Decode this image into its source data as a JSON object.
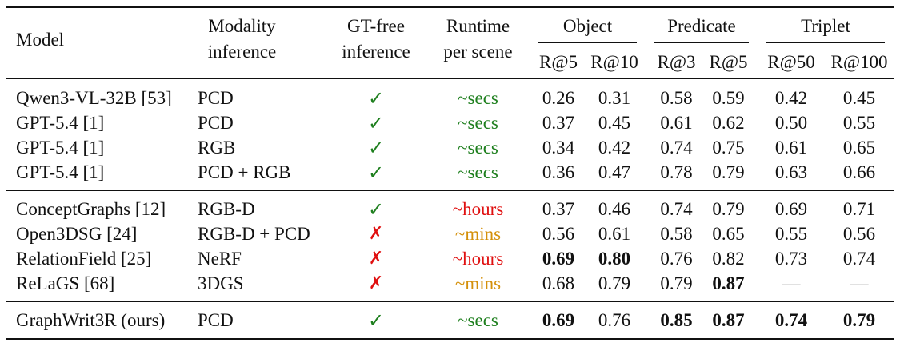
{
  "header": {
    "model": "Model",
    "modality_l1": "Modality",
    "modality_l2": "inference",
    "gtfree_l1": "GT-free",
    "gtfree_l2": "inference",
    "runtime_l1": "Runtime",
    "runtime_l2": "per scene",
    "group_object": "Object",
    "group_predicate": "Predicate",
    "group_triplet": "Triplet",
    "sub": [
      "R@5",
      "R@10",
      "R@3",
      "R@5",
      "R@50",
      "R@100"
    ]
  },
  "colors": {
    "green": "#1e7f1e",
    "red": "#e01010",
    "orange": "#d4900a"
  },
  "rows": [
    {
      "model": "Qwen3-VL-32B [53]",
      "modality": "PCD",
      "gtfree": "✓",
      "runtime": "~secs",
      "vals": [
        "0.26",
        "0.31",
        "0.58",
        "0.59",
        "0.42",
        "0.45"
      ]
    },
    {
      "model": "GPT-5.4 [1]",
      "modality": "PCD",
      "gtfree": "✓",
      "runtime": "~secs",
      "vals": [
        "0.37",
        "0.45",
        "0.61",
        "0.62",
        "0.50",
        "0.55"
      ]
    },
    {
      "model": "GPT-5.4 [1]",
      "modality": "RGB",
      "gtfree": "✓",
      "runtime": "~secs",
      "vals": [
        "0.34",
        "0.42",
        "0.74",
        "0.75",
        "0.61",
        "0.65"
      ]
    },
    {
      "model": "GPT-5.4 [1]",
      "modality": "PCD + RGB",
      "gtfree": "✓",
      "runtime": "~secs",
      "vals": [
        "0.36",
        "0.47",
        "0.78",
        "0.79",
        "0.63",
        "0.66"
      ]
    },
    {
      "model": "ConceptGraphs [12]",
      "modality": "RGB-D",
      "gtfree": "✓",
      "runtime": "~hours",
      "vals": [
        "0.37",
        "0.46",
        "0.74",
        "0.79",
        "0.69",
        "0.71"
      ]
    },
    {
      "model": "Open3DSG [24]",
      "modality": "RGB-D + PCD",
      "gtfree": "✗",
      "runtime": "~mins",
      "vals": [
        "0.56",
        "0.61",
        "0.58",
        "0.65",
        "0.55",
        "0.56"
      ]
    },
    {
      "model": "RelationField [25]",
      "modality": "NeRF",
      "gtfree": "✗",
      "runtime": "~hours",
      "vals": [
        "0.69",
        "0.80",
        "0.76",
        "0.82",
        "0.73",
        "0.74"
      ]
    },
    {
      "model": "ReLaGS [68]",
      "modality": "3DGS",
      "gtfree": "✗",
      "runtime": "~mins",
      "vals": [
        "0.68",
        "0.79",
        "0.79",
        "0.87",
        "—",
        "—"
      ]
    },
    {
      "model": "GraphWrit3R (ours)",
      "modality": "PCD",
      "gtfree": "✓",
      "runtime": "~secs",
      "vals": [
        "0.69",
        "0.76",
        "0.85",
        "0.87",
        "0.74",
        "0.79"
      ]
    }
  ]
}
